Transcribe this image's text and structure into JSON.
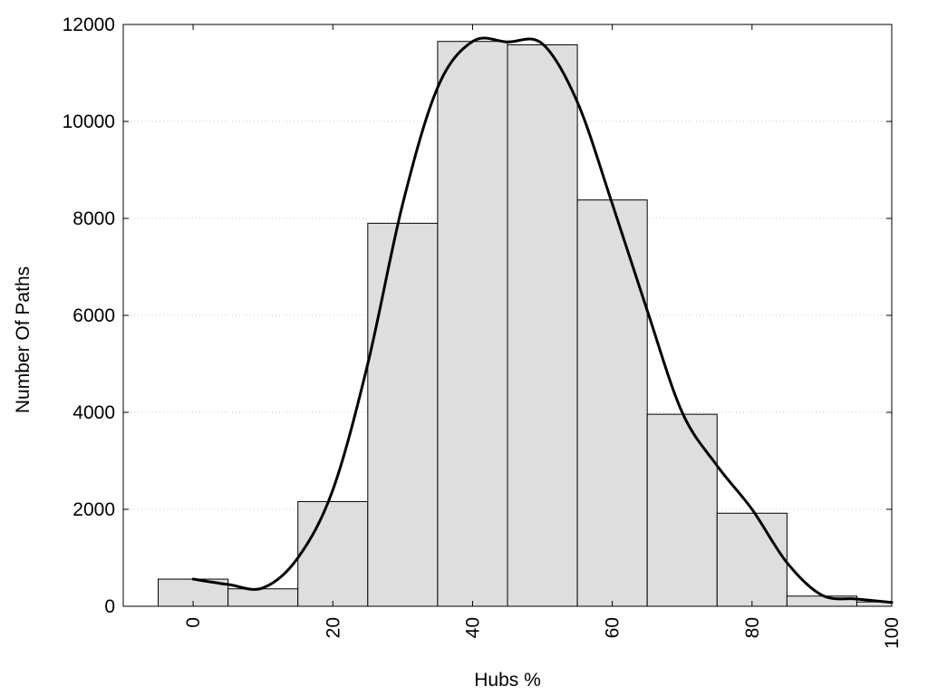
{
  "chart_data": {
    "type": "bar",
    "title": "",
    "xlabel": "Hubs %",
    "ylabel": "Number Of Paths",
    "bin_width": 10,
    "x": [
      0,
      10,
      20,
      30,
      40,
      50,
      60,
      70,
      80,
      90,
      100
    ],
    "values": [
      560,
      360,
      2160,
      7900,
      11650,
      11580,
      8380,
      3960,
      1920,
      210,
      90
    ],
    "x_ticks": [
      0,
      20,
      40,
      60,
      80,
      100
    ],
    "x_tick_labels": [
      "0",
      "20",
      "40",
      "60",
      "80",
      "100"
    ],
    "y_ticks": [
      0,
      2000,
      4000,
      6000,
      8000,
      10000,
      12000
    ],
    "y_tick_labels": [
      "0",
      "2000",
      "4000",
      "6000",
      "8000",
      "10000",
      "12000"
    ],
    "xlim": [
      -10,
      100
    ],
    "ylim": [
      0,
      12000
    ],
    "grid": "horizontal dotted",
    "bar_fill": "#dedede",
    "bar_stroke": "#000000",
    "curve": {
      "description": "smoothed density curve",
      "x": [
        0,
        5,
        10,
        15,
        20,
        25,
        30,
        35,
        40,
        45,
        50,
        55,
        60,
        65,
        70,
        75,
        80,
        85,
        90,
        95,
        100
      ],
      "y": [
        560,
        450,
        380,
        1000,
        2400,
        5000,
        8300,
        10700,
        11650,
        11640,
        11600,
        10400,
        8300,
        6100,
        4000,
        2900,
        2000,
        900,
        230,
        150,
        80
      ],
      "color": "#000000"
    }
  }
}
